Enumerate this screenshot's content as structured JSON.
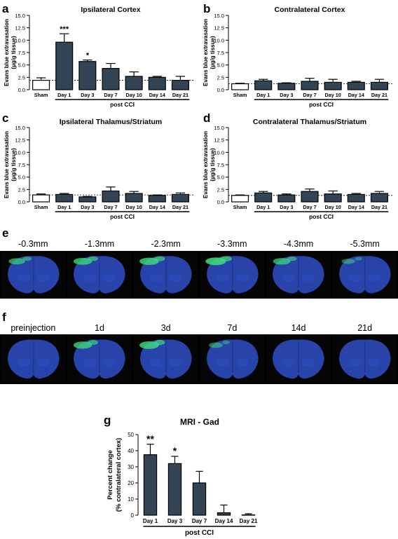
{
  "panel_letters": {
    "a": "a",
    "b": "b",
    "c": "c",
    "d": "d",
    "e": "e",
    "f": "f",
    "g": "g"
  },
  "ylabel_evans": [
    "Evans blue extravasation",
    "(µg/g tissue)"
  ],
  "ylabel_mri": [
    "Percent change",
    "(% contralateral cortex)"
  ],
  "colors": {
    "bar_fill": "#334455",
    "sham_fill": "#ffffff",
    "brain_blue": "#2a48b4",
    "lesion_green": "#3fe07a"
  },
  "chart_data": [
    {
      "id": "a",
      "type": "bar",
      "title": "Ipsilateral Cortex",
      "categories": [
        "Sham",
        "Day 1",
        "Day 3",
        "Day 7",
        "Day 10",
        "Day 14",
        "Day 21"
      ],
      "values": [
        1.9,
        9.6,
        5.7,
        4.3,
        2.7,
        2.5,
        1.9
      ],
      "errors": [
        0.5,
        1.7,
        0.3,
        1.0,
        0.9,
        0.2,
        0.8
      ],
      "significance": [
        "",
        "***",
        "*",
        "",
        "",
        "",
        ""
      ],
      "ylim": [
        0,
        15
      ],
      "yticks": [
        "0.0",
        "2.5",
        "5.0",
        "7.5",
        "10.0",
        "12.5",
        "15.0"
      ],
      "xgroup_label": "post CCI",
      "reference_line": 1.9
    },
    {
      "id": "b",
      "type": "bar",
      "title": "Contralateral Cortex",
      "categories": [
        "Sham",
        "Day 1",
        "Day 3",
        "Day 7",
        "Day 10",
        "Day 14",
        "Day 21"
      ],
      "values": [
        1.2,
        1.8,
        1.3,
        1.7,
        1.5,
        1.5,
        1.5
      ],
      "errors": [
        0.1,
        0.3,
        0.1,
        0.6,
        0.6,
        0.2,
        0.6
      ],
      "significance": [
        "",
        "",
        "",
        "",
        "",
        "",
        ""
      ],
      "ylim": [
        0,
        15
      ],
      "yticks": [
        "0.0",
        "2.5",
        "5.0",
        "7.5",
        "10.0",
        "12.5",
        "15.0"
      ],
      "xgroup_label": "post CCI",
      "reference_line": 1.2
    },
    {
      "id": "c",
      "type": "bar",
      "title": "Ipsilateral Thalamus/Striatum",
      "categories": [
        "Sham",
        "Day 1",
        "Day 3",
        "Day 7",
        "Day 10",
        "Day 14",
        "Day 21"
      ],
      "values": [
        1.4,
        1.5,
        1.0,
        2.2,
        1.7,
        1.3,
        1.5
      ],
      "errors": [
        0.2,
        0.2,
        0.1,
        0.8,
        0.4,
        0.1,
        0.3
      ],
      "significance": [
        "",
        "",
        "",
        "",
        "",
        "",
        ""
      ],
      "ylim": [
        0,
        15
      ],
      "yticks": [
        "0.0",
        "2.5",
        "5.0",
        "7.5",
        "10.0",
        "12.5",
        "15.0"
      ],
      "xgroup_label": "post CCI",
      "reference_line": 1.4
    },
    {
      "id": "d",
      "type": "bar",
      "title": "Contralateral Thalamus/Striatum",
      "categories": [
        "Sham",
        "Day 1",
        "Day 3",
        "Day 7",
        "Day 10",
        "Day 14",
        "Day 21"
      ],
      "values": [
        1.3,
        1.8,
        1.4,
        2.1,
        1.6,
        1.5,
        1.7
      ],
      "errors": [
        0.1,
        0.3,
        0.2,
        0.5,
        0.6,
        0.2,
        0.4
      ],
      "significance": [
        "",
        "",
        "",
        "",
        "",
        "",
        ""
      ],
      "ylim": [
        0,
        15
      ],
      "yticks": [
        "0.0",
        "2.5",
        "5.0",
        "7.5",
        "10.0",
        "12.5",
        "15.0"
      ],
      "xgroup_label": "post CCI",
      "reference_line": 1.3
    },
    {
      "id": "g",
      "type": "bar",
      "title": "MRI - Gad",
      "categories": [
        "Day 1",
        "Day 3",
        "Day 7",
        "Day 14",
        "Day 21"
      ],
      "values": [
        37.5,
        32,
        20,
        1.5,
        0.2
      ],
      "errors": [
        6.5,
        4.5,
        7.2,
        4.8,
        0.7
      ],
      "significance": [
        "**",
        "*",
        "",
        "",
        ""
      ],
      "ylim": [
        0,
        50
      ],
      "yticks": [
        "0",
        "10",
        "20",
        "30",
        "40",
        "50"
      ],
      "xgroup_label": "post CCI"
    }
  ],
  "brain_rows": [
    {
      "id": "e",
      "labels": [
        "-0.3mm",
        "-1.3mm",
        "-2.3mm",
        "-3.3mm",
        "-4.3mm",
        "-5.3mm"
      ],
      "lesion_intensity": [
        0.6,
        0.8,
        0.9,
        1.0,
        0.7,
        0.3
      ]
    },
    {
      "id": "f",
      "labels": [
        "preinjection",
        "1d",
        "3d",
        "7d",
        "14d",
        "21d"
      ],
      "lesion_intensity": [
        0.0,
        0.8,
        0.9,
        0.35,
        0.0,
        0.0
      ]
    }
  ]
}
